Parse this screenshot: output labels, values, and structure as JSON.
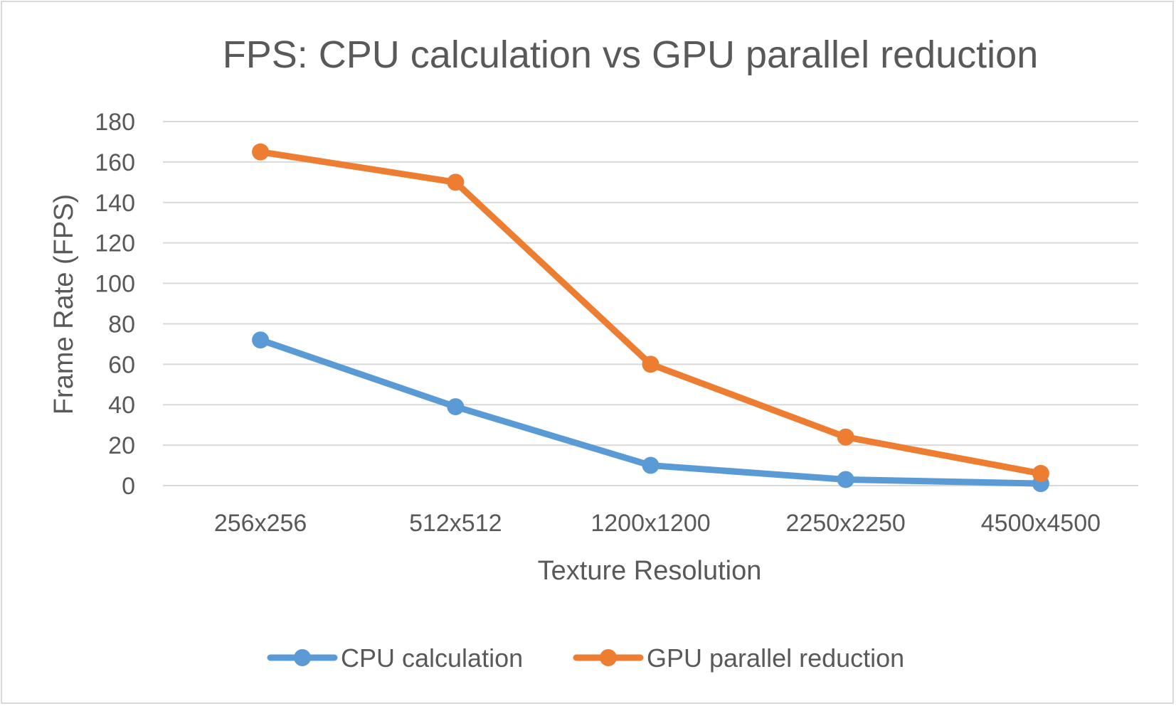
{
  "chart_data": {
    "type": "line",
    "title": "FPS: CPU calculation vs GPU parallel reduction",
    "xlabel": "Texture Resolution",
    "ylabel": "Frame Rate (FPS)",
    "categories": [
      "256x256",
      "512x512",
      "1200x1200",
      "2250x2250",
      "4500x4500"
    ],
    "ylim": [
      0,
      180
    ],
    "yticks": [
      0,
      20,
      40,
      60,
      80,
      100,
      120,
      140,
      160,
      180
    ],
    "grid": "horizontal",
    "legend_position": "bottom",
    "series": [
      {
        "name": "CPU calculation",
        "color": "#5b9bd5",
        "values": [
          72,
          39,
          10,
          3,
          1
        ]
      },
      {
        "name": "GPU parallel reduction",
        "color": "#ed7d31",
        "values": [
          165,
          150,
          60,
          24,
          6
        ]
      }
    ]
  }
}
